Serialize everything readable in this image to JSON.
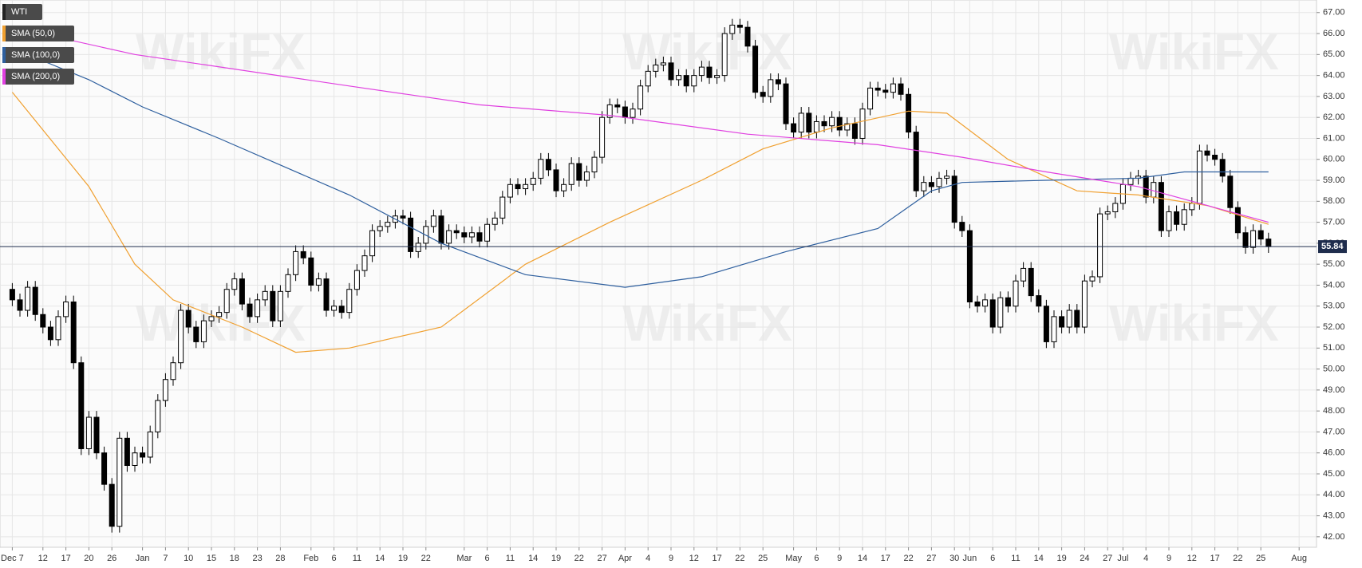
{
  "chart_data": {
    "type": "candlestick",
    "watermark": "WikiFX",
    "ylim": [
      41.5,
      67.6
    ],
    "yticks": [
      {
        "value": 42,
        "label": "42.00"
      },
      {
        "value": 43,
        "label": "43.00"
      },
      {
        "value": 44,
        "label": "44.00"
      },
      {
        "value": 45,
        "label": "45.00"
      },
      {
        "value": 46,
        "label": "46.00"
      },
      {
        "value": 47,
        "label": "47.00"
      },
      {
        "value": 48,
        "label": "48.00"
      },
      {
        "value": 49,
        "label": "49.00"
      },
      {
        "value": 50,
        "label": "50.00"
      },
      {
        "value": 51,
        "label": "51.00"
      },
      {
        "value": 52,
        "label": "52.00"
      },
      {
        "value": 53,
        "label": "53.00"
      },
      {
        "value": 54,
        "label": "54.00"
      },
      {
        "value": 55,
        "label": "55.00"
      },
      {
        "value": 56,
        "label": "56.00"
      },
      {
        "value": 57,
        "label": "57.00"
      },
      {
        "value": 58,
        "label": "58.00"
      },
      {
        "value": 59,
        "label": "59.00"
      },
      {
        "value": 60,
        "label": "60.00"
      },
      {
        "value": 61,
        "label": "61.00"
      },
      {
        "value": 62,
        "label": "62.00"
      },
      {
        "value": 63,
        "label": "63.00"
      },
      {
        "value": 64,
        "label": "64.00"
      },
      {
        "value": 65,
        "label": "65.00"
      },
      {
        "value": 66,
        "label": "66.00"
      },
      {
        "value": 67,
        "label": "67.00"
      }
    ],
    "grid": true,
    "price_line": 55.84,
    "price_line_color": "#1f2d4d",
    "categories": [
      "Dec 7",
      null,
      null,
      null,
      "12",
      null,
      null,
      "17",
      null,
      null,
      "20",
      null,
      null,
      "26",
      null,
      null,
      null,
      "Jan",
      null,
      null,
      "7",
      null,
      null,
      "10",
      null,
      null,
      "15",
      null,
      null,
      "18",
      null,
      null,
      "23",
      null,
      null,
      "28",
      null,
      null,
      null,
      "Feb",
      null,
      null,
      "6",
      null,
      null,
      "11",
      null,
      null,
      "14",
      null,
      null,
      "19",
      null,
      null,
      "22",
      null,
      null,
      null,
      null,
      "Mar",
      null,
      null,
      "6",
      null,
      null,
      "11",
      null,
      null,
      "14",
      null,
      null,
      "19",
      null,
      null,
      "22",
      null,
      null,
      "27",
      null,
      null,
      "Apr",
      null,
      null,
      "4",
      null,
      null,
      "9",
      null,
      null,
      "12",
      null,
      null,
      "17",
      null,
      null,
      "22",
      null,
      null,
      "25",
      null,
      null,
      null,
      "May",
      null,
      null,
      "6",
      null,
      null,
      "9",
      null,
      null,
      "14",
      null,
      null,
      "17",
      null,
      null,
      "22",
      null,
      null,
      "27",
      null,
      null,
      "30",
      null,
      "Jun",
      null,
      null,
      "6",
      null,
      null,
      "11",
      null,
      null,
      "14",
      null,
      null,
      "19",
      null,
      null,
      "24",
      null,
      null,
      "27",
      null,
      "Jul",
      null,
      null,
      "4",
      null,
      null,
      "9",
      null,
      null,
      "12",
      null,
      null,
      "17",
      null,
      null,
      "22",
      null,
      null,
      "25",
      null,
      null,
      null,
      null,
      "Aug",
      null
    ],
    "series": [
      {
        "name": "WTI",
        "color": "#000000",
        "open": [
          53.8,
          53.3,
          52.8,
          53.9,
          52.6,
          52.0,
          51.4,
          52.5,
          53.2,
          50.3,
          46.2,
          47.7,
          46.0,
          44.5,
          42.5,
          46.7,
          45.4,
          46.0,
          45.8,
          47.0,
          48.5,
          49.5,
          50.3,
          52.8,
          52.0,
          51.3,
          52.3,
          52.5,
          52.7,
          53.8,
          54.3,
          53.1,
          52.5,
          53.3,
          53.7,
          52.3,
          53.7,
          54.5,
          55.6,
          55.3,
          54.0,
          54.3,
          52.8,
          53.0,
          52.7,
          53.8,
          54.7,
          55.4,
          56.6,
          56.8,
          57.0,
          57.3,
          57.2,
          55.6,
          56.0,
          56.8,
          57.3,
          56.0,
          56.6,
          56.5,
          56.3,
          56.5,
          56.1,
          56.9,
          57.2,
          58.2,
          58.8,
          58.6,
          58.8,
          59.1,
          60.0,
          59.5,
          58.5,
          58.8,
          59.8,
          59.0,
          59.4,
          60.1,
          62.0,
          62.6,
          62.5,
          62.0,
          62.4,
          63.5,
          64.2,
          64.5,
          64.6,
          63.8,
          64.0,
          63.5,
          64.0,
          64.4,
          63.9,
          64.0,
          66.0,
          66.4,
          66.3,
          65.4,
          63.2,
          63.0,
          63.8,
          63.6,
          61.7,
          61.3,
          62.2,
          61.3,
          61.8,
          61.6,
          62.0,
          61.4,
          61.7,
          61.0,
          62.4,
          63.4,
          63.3,
          63.2,
          63.6,
          63.1,
          61.3,
          58.5,
          58.9,
          58.7,
          59.1,
          59.2,
          57.0,
          56.6,
          53.2,
          53.0,
          53.3,
          52.0,
          53.4,
          53.0,
          54.2,
          54.8,
          53.5,
          53.0,
          51.3,
          52.5,
          52.0,
          52.8,
          52.0,
          54.2,
          54.4,
          57.4,
          57.5,
          57.9,
          58.8,
          59.1,
          59.2,
          58.2,
          58.9,
          56.6,
          57.5,
          56.9,
          57.6,
          57.9,
          60.4,
          60.2,
          60.0,
          59.2,
          57.7,
          56.5,
          55.8,
          56.6,
          56.2,
          null,
          null,
          null,
          null,
          null
        ],
        "high": [
          54.1,
          53.6,
          54.2,
          54.2,
          52.9,
          52.3,
          52.8,
          53.5,
          53.5,
          50.6,
          48.0,
          48.0,
          46.3,
          44.8,
          47.0,
          47.0,
          46.3,
          46.3,
          47.3,
          48.8,
          49.8,
          50.6,
          53.1,
          53.1,
          52.3,
          52.6,
          52.8,
          53.0,
          54.1,
          54.6,
          54.6,
          53.4,
          53.6,
          54.0,
          54.0,
          54.0,
          54.8,
          55.9,
          55.9,
          55.6,
          54.6,
          54.6,
          53.3,
          53.3,
          54.1,
          55.0,
          55.7,
          56.9,
          57.1,
          57.3,
          57.6,
          57.6,
          57.5,
          56.3,
          57.1,
          57.6,
          57.6,
          56.9,
          56.9,
          56.8,
          56.8,
          56.8,
          57.2,
          57.5,
          58.5,
          59.1,
          59.1,
          59.1,
          59.4,
          60.3,
          60.3,
          59.8,
          59.1,
          60.1,
          60.1,
          59.7,
          60.4,
          62.3,
          62.9,
          62.9,
          62.8,
          62.7,
          63.8,
          64.5,
          64.8,
          64.9,
          64.9,
          64.3,
          64.3,
          64.3,
          64.7,
          64.7,
          64.3,
          66.3,
          66.7,
          66.7,
          66.6,
          65.7,
          63.5,
          64.1,
          64.1,
          63.9,
          62.0,
          62.5,
          62.5,
          62.1,
          62.1,
          62.3,
          62.3,
          62.0,
          62.0,
          62.7,
          63.7,
          63.7,
          63.6,
          63.9,
          63.9,
          63.4,
          61.6,
          59.2,
          59.2,
          59.4,
          59.5,
          59.5,
          57.3,
          56.9,
          53.5,
          53.6,
          53.6,
          53.7,
          53.7,
          54.5,
          55.1,
          55.1,
          53.8,
          53.3,
          52.8,
          52.8,
          53.1,
          53.1,
          54.5,
          54.7,
          57.7,
          57.8,
          58.2,
          59.1,
          59.4,
          59.5,
          59.5,
          59.2,
          59.2,
          57.8,
          57.8,
          57.9,
          58.2,
          60.7,
          60.7,
          60.5,
          60.3,
          59.5,
          58.0,
          56.8,
          56.9,
          56.9,
          56.5,
          null,
          null,
          null,
          null,
          null
        ],
        "low": [
          53.0,
          52.5,
          52.5,
          52.3,
          51.7,
          51.1,
          51.1,
          52.2,
          50.0,
          45.9,
          45.9,
          45.7,
          44.2,
          42.2,
          42.2,
          45.1,
          45.1,
          45.5,
          45.5,
          46.7,
          48.2,
          49.2,
          50.0,
          51.7,
          51.0,
          51.0,
          52.0,
          52.2,
          52.4,
          53.5,
          52.8,
          52.2,
          52.2,
          53.0,
          52.0,
          52.0,
          53.4,
          54.2,
          55.0,
          53.7,
          53.7,
          52.5,
          52.5,
          52.4,
          52.4,
          53.5,
          54.4,
          55.1,
          56.3,
          56.5,
          56.7,
          56.9,
          55.3,
          55.3,
          55.7,
          56.5,
          55.7,
          55.7,
          56.2,
          56.0,
          56.0,
          55.8,
          55.8,
          56.6,
          56.9,
          57.9,
          58.3,
          58.3,
          58.5,
          58.8,
          59.2,
          58.2,
          58.2,
          58.5,
          58.7,
          58.7,
          59.1,
          59.8,
          61.7,
          62.2,
          61.7,
          61.7,
          62.1,
          63.2,
          63.9,
          64.2,
          63.5,
          63.5,
          63.2,
          63.2,
          63.7,
          63.6,
          63.6,
          63.7,
          65.7,
          66.0,
          65.1,
          62.9,
          62.7,
          62.7,
          63.3,
          61.4,
          61.0,
          61.0,
          61.0,
          61.0,
          61.3,
          61.3,
          61.1,
          61.1,
          60.7,
          60.7,
          62.1,
          63.0,
          62.9,
          62.9,
          62.8,
          61.0,
          58.2,
          58.2,
          58.4,
          58.4,
          58.8,
          56.7,
          56.3,
          52.9,
          52.7,
          52.7,
          51.7,
          51.7,
          52.7,
          52.7,
          53.9,
          53.2,
          52.7,
          51.0,
          51.0,
          51.7,
          51.7,
          51.7,
          51.7,
          53.9,
          54.1,
          57.1,
          57.2,
          57.6,
          58.5,
          58.8,
          57.9,
          57.9,
          56.3,
          56.3,
          56.6,
          56.6,
          57.3,
          57.6,
          59.9,
          59.7,
          58.9,
          57.4,
          56.2,
          55.5,
          55.5,
          55.9,
          55.54,
          null,
          null,
          null,
          null,
          null
        ],
        "close": [
          53.3,
          52.8,
          53.9,
          52.6,
          52.0,
          51.4,
          52.5,
          53.2,
          50.3,
          46.2,
          47.7,
          46.0,
          44.5,
          42.5,
          46.7,
          45.4,
          46.0,
          45.8,
          47.0,
          48.5,
          49.5,
          50.3,
          52.8,
          52.0,
          51.3,
          52.3,
          52.5,
          52.7,
          53.8,
          54.3,
          53.1,
          52.5,
          53.3,
          53.7,
          52.3,
          53.7,
          54.5,
          55.6,
          55.3,
          54.0,
          54.3,
          52.8,
          53.0,
          52.7,
          53.8,
          54.7,
          55.4,
          56.6,
          56.8,
          57.0,
          57.3,
          57.2,
          55.6,
          56.0,
          56.8,
          57.3,
          56.0,
          56.6,
          56.5,
          56.3,
          56.5,
          56.1,
          56.9,
          57.2,
          58.2,
          58.8,
          58.6,
          58.8,
          59.1,
          60.0,
          59.5,
          58.5,
          58.8,
          59.8,
          59.0,
          59.4,
          60.1,
          62.0,
          62.6,
          62.5,
          62.0,
          62.4,
          63.5,
          64.2,
          64.5,
          64.6,
          63.8,
          64.0,
          63.5,
          64.0,
          64.4,
          63.9,
          64.0,
          66.0,
          66.4,
          66.3,
          65.4,
          63.2,
          63.0,
          63.8,
          63.6,
          61.7,
          61.3,
          62.2,
          61.3,
          61.8,
          61.6,
          62.0,
          61.4,
          61.7,
          61.0,
          62.4,
          63.4,
          63.3,
          63.2,
          63.6,
          63.1,
          61.3,
          58.5,
          58.9,
          58.7,
          59.1,
          59.2,
          57.0,
          56.6,
          53.2,
          53.0,
          53.3,
          52.0,
          53.4,
          53.0,
          54.2,
          54.8,
          53.5,
          53.0,
          51.3,
          52.5,
          52.0,
          52.8,
          52.0,
          54.2,
          54.4,
          57.4,
          57.5,
          57.9,
          58.8,
          59.1,
          59.2,
          58.2,
          58.9,
          56.6,
          57.5,
          56.9,
          57.6,
          57.9,
          60.4,
          60.2,
          60.0,
          59.2,
          57.7,
          56.5,
          55.8,
          56.6,
          56.2,
          55.84,
          null,
          null,
          null,
          null,
          null
        ]
      },
      {
        "name": "SMA (50,0)",
        "color": "#f0a030",
        "x": [
          0,
          10,
          16,
          21,
          30,
          37,
          44,
          56,
          67,
          78,
          90,
          98,
          107,
          117,
          122,
          130,
          139,
          147,
          156,
          164
        ],
        "values": [
          63.2,
          58.7,
          55.0,
          53.3,
          52.0,
          50.8,
          51.0,
          52.0,
          55.0,
          57.0,
          59.0,
          60.5,
          61.5,
          62.3,
          62.2,
          60.0,
          58.5,
          58.3,
          57.8,
          56.9
        ]
      },
      {
        "name": "SMA (100,0)",
        "color": "#2e5f9e",
        "x": [
          0,
          10,
          17,
          27,
          44,
          56,
          67,
          80,
          90,
          101,
          113,
          120,
          124,
          135,
          147,
          153,
          164
        ],
        "values": [
          65.3,
          63.8,
          62.5,
          61.0,
          58.3,
          56.0,
          54.5,
          53.9,
          54.4,
          55.6,
          56.7,
          58.5,
          58.9,
          59.0,
          59.1,
          59.4,
          59.4
        ]
      },
      {
        "name": "SMA (200,0)",
        "color": "#e040e0",
        "x": [
          0,
          16,
          44,
          61,
          78,
          96,
          113,
          124,
          135,
          147,
          164
        ],
        "values": [
          66.3,
          65.0,
          63.5,
          62.6,
          62.1,
          61.2,
          60.7,
          60.1,
          59.4,
          58.7,
          57.0
        ]
      }
    ]
  }
}
